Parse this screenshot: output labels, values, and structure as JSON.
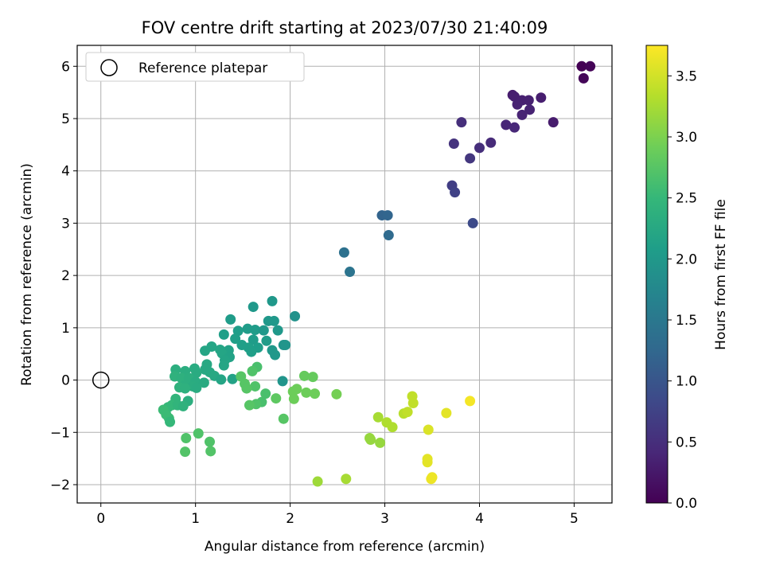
{
  "chart_data": {
    "type": "scatter",
    "title": "FOV centre drift starting at 2023/07/30 21:40:09",
    "xlabel": "Angular distance from reference (arcmin)",
    "ylabel": "Rotation from reference (arcmin)",
    "xlim": [
      -0.25,
      5.4
    ],
    "ylim": [
      -2.35,
      6.4
    ],
    "xticks": [
      0,
      1,
      2,
      3,
      4,
      5
    ],
    "yticks": [
      -2,
      -1,
      0,
      1,
      2,
      3,
      4,
      5,
      6
    ],
    "grid": true,
    "legend": {
      "position": "top-left",
      "entries": [
        "Reference platepar"
      ]
    },
    "reference_point": {
      "x": 0,
      "y": 0,
      "label": "Reference platepar"
    },
    "colorbar": {
      "label": "Hours from first FF file",
      "colormap": "viridis",
      "range": [
        0,
        3.75
      ],
      "ticks": [
        "0.0",
        "0.5",
        "1.0",
        "1.5",
        "2.0",
        "2.5",
        "3.0",
        "3.5"
      ]
    },
    "colors": {
      "viridis_stops": [
        "#440154",
        "#482878",
        "#3e4989",
        "#31688e",
        "#26828e",
        "#1f9e89",
        "#35b779",
        "#6ece58",
        "#b5de2b",
        "#fde725"
      ],
      "grid": "#b0b0b0"
    },
    "points": [
      {
        "x": 5.08,
        "y": 6.0,
        "t": 0.0
      },
      {
        "x": 5.17,
        "y": 6.0,
        "t": 0.03
      },
      {
        "x": 5.1,
        "y": 5.77,
        "t": 0.05
      },
      {
        "x": 4.35,
        "y": 5.45,
        "t": 0.3
      },
      {
        "x": 4.37,
        "y": 5.42,
        "t": 0.32
      },
      {
        "x": 4.45,
        "y": 5.35,
        "t": 0.33
      },
      {
        "x": 4.52,
        "y": 5.35,
        "t": 0.34
      },
      {
        "x": 4.4,
        "y": 5.27,
        "t": 0.35
      },
      {
        "x": 4.65,
        "y": 5.4,
        "t": 0.31
      },
      {
        "x": 4.53,
        "y": 5.17,
        "t": 0.36
      },
      {
        "x": 4.45,
        "y": 5.07,
        "t": 0.37
      },
      {
        "x": 4.28,
        "y": 4.88,
        "t": 0.4
      },
      {
        "x": 4.37,
        "y": 4.83,
        "t": 0.42
      },
      {
        "x": 4.78,
        "y": 4.93,
        "t": 0.29
      },
      {
        "x": 3.81,
        "y": 4.93,
        "t": 0.5
      },
      {
        "x": 3.73,
        "y": 4.52,
        "t": 0.55
      },
      {
        "x": 4.12,
        "y": 4.54,
        "t": 0.45
      },
      {
        "x": 4.0,
        "y": 4.44,
        "t": 0.5
      },
      {
        "x": 3.9,
        "y": 4.24,
        "t": 0.6
      },
      {
        "x": 3.71,
        "y": 3.72,
        "t": 0.7
      },
      {
        "x": 3.74,
        "y": 3.59,
        "t": 0.75
      },
      {
        "x": 3.93,
        "y": 3.0,
        "t": 0.85
      },
      {
        "x": 2.97,
        "y": 3.15,
        "t": 1.2
      },
      {
        "x": 3.03,
        "y": 3.15,
        "t": 1.22
      },
      {
        "x": 3.04,
        "y": 2.77,
        "t": 1.3
      },
      {
        "x": 2.57,
        "y": 2.44,
        "t": 1.4
      },
      {
        "x": 2.63,
        "y": 2.07,
        "t": 1.45
      },
      {
        "x": 1.81,
        "y": 1.51,
        "t": 2.0
      },
      {
        "x": 1.61,
        "y": 1.4,
        "t": 2.0
      },
      {
        "x": 1.37,
        "y": 1.16,
        "t": 2.05
      },
      {
        "x": 2.05,
        "y": 1.22,
        "t": 1.9
      },
      {
        "x": 1.77,
        "y": 1.13,
        "t": 2.0
      },
      {
        "x": 1.83,
        "y": 1.13,
        "t": 2.0
      },
      {
        "x": 1.55,
        "y": 0.98,
        "t": 2.05
      },
      {
        "x": 1.63,
        "y": 0.96,
        "t": 2.05
      },
      {
        "x": 1.45,
        "y": 0.94,
        "t": 2.08
      },
      {
        "x": 1.72,
        "y": 0.95,
        "t": 2.0
      },
      {
        "x": 1.87,
        "y": 0.95,
        "t": 2.0
      },
      {
        "x": 1.3,
        "y": 0.87,
        "t": 2.1
      },
      {
        "x": 1.42,
        "y": 0.79,
        "t": 2.1
      },
      {
        "x": 1.61,
        "y": 0.77,
        "t": 2.05
      },
      {
        "x": 1.75,
        "y": 0.75,
        "t": 2.05
      },
      {
        "x": 1.49,
        "y": 0.67,
        "t": 2.1
      },
      {
        "x": 1.56,
        "y": 0.62,
        "t": 2.1
      },
      {
        "x": 1.66,
        "y": 0.62,
        "t": 2.08
      },
      {
        "x": 1.17,
        "y": 0.64,
        "t": 2.2
      },
      {
        "x": 1.26,
        "y": 0.58,
        "t": 2.2
      },
      {
        "x": 1.35,
        "y": 0.57,
        "t": 2.15
      },
      {
        "x": 1.93,
        "y": 0.67,
        "t": 1.95
      },
      {
        "x": 1.95,
        "y": 0.67,
        "t": 1.95
      },
      {
        "x": 1.81,
        "y": 0.57,
        "t": 2.0
      },
      {
        "x": 1.59,
        "y": 0.54,
        "t": 2.1
      },
      {
        "x": 1.1,
        "y": 0.56,
        "t": 2.2
      },
      {
        "x": 1.28,
        "y": 0.51,
        "t": 2.2
      },
      {
        "x": 1.84,
        "y": 0.48,
        "t": 2.0
      },
      {
        "x": 1.36,
        "y": 0.44,
        "t": 2.15
      },
      {
        "x": 1.31,
        "y": 0.38,
        "t": 2.18
      },
      {
        "x": 1.3,
        "y": 0.28,
        "t": 2.2
      },
      {
        "x": 1.12,
        "y": 0.3,
        "t": 2.25
      },
      {
        "x": 1.1,
        "y": 0.2,
        "t": 2.25
      },
      {
        "x": 1.15,
        "y": 0.15,
        "t": 2.25
      },
      {
        "x": 0.99,
        "y": 0.22,
        "t": 2.3
      },
      {
        "x": 0.79,
        "y": 0.2,
        "t": 2.35
      },
      {
        "x": 0.89,
        "y": 0.17,
        "t": 2.33
      },
      {
        "x": 1.01,
        "y": 0.14,
        "t": 2.3
      },
      {
        "x": 1.2,
        "y": 0.08,
        "t": 2.25
      },
      {
        "x": 0.78,
        "y": 0.07,
        "t": 2.4
      },
      {
        "x": 0.85,
        "y": 0.04,
        "t": 2.38
      },
      {
        "x": 0.93,
        "y": 0.04,
        "t": 2.35
      },
      {
        "x": 1.27,
        "y": 0.01,
        "t": 2.2
      },
      {
        "x": 1.39,
        "y": 0.02,
        "t": 2.15
      },
      {
        "x": 1.0,
        "y": -0.03,
        "t": 2.3
      },
      {
        "x": 1.09,
        "y": -0.05,
        "t": 2.28
      },
      {
        "x": 0.89,
        "y": -0.1,
        "t": 2.35
      },
      {
        "x": 0.97,
        "y": -0.12,
        "t": 2.32
      },
      {
        "x": 0.83,
        "y": -0.14,
        "t": 2.4
      },
      {
        "x": 0.89,
        "y": -0.16,
        "t": 2.38
      },
      {
        "x": 1.01,
        "y": -0.15,
        "t": 2.3
      },
      {
        "x": 0.79,
        "y": -0.36,
        "t": 2.45
      },
      {
        "x": 0.92,
        "y": -0.4,
        "t": 2.35
      },
      {
        "x": 0.75,
        "y": -0.48,
        "t": 2.5
      },
      {
        "x": 0.81,
        "y": -0.48,
        "t": 2.45
      },
      {
        "x": 0.87,
        "y": -0.5,
        "t": 2.4
      },
      {
        "x": 0.71,
        "y": -0.52,
        "t": 2.5
      },
      {
        "x": 0.66,
        "y": -0.57,
        "t": 2.55
      },
      {
        "x": 0.69,
        "y": -0.66,
        "t": 2.55
      },
      {
        "x": 0.72,
        "y": -0.73,
        "t": 2.55
      },
      {
        "x": 0.73,
        "y": -0.8,
        "t": 2.5
      },
      {
        "x": 0.9,
        "y": -1.11,
        "t": 2.7
      },
      {
        "x": 1.03,
        "y": -1.02,
        "t": 2.7
      },
      {
        "x": 1.15,
        "y": -1.18,
        "t": 2.7
      },
      {
        "x": 1.16,
        "y": -1.36,
        "t": 2.72
      },
      {
        "x": 0.89,
        "y": -1.37,
        "t": 2.72
      },
      {
        "x": 1.65,
        "y": 0.25,
        "t": 2.65
      },
      {
        "x": 1.6,
        "y": 0.17,
        "t": 2.7
      },
      {
        "x": 1.48,
        "y": 0.07,
        "t": 2.75
      },
      {
        "x": 1.92,
        "y": -0.02,
        "t": 1.95
      },
      {
        "x": 1.52,
        "y": -0.07,
        "t": 2.75
      },
      {
        "x": 1.63,
        "y": -0.12,
        "t": 2.7
      },
      {
        "x": 1.54,
        "y": -0.16,
        "t": 2.75
      },
      {
        "x": 1.74,
        "y": -0.26,
        "t": 2.65
      },
      {
        "x": 1.85,
        "y": -0.35,
        "t": 2.8
      },
      {
        "x": 1.7,
        "y": -0.42,
        "t": 2.65
      },
      {
        "x": 1.64,
        "y": -0.46,
        "t": 2.7
      },
      {
        "x": 1.57,
        "y": -0.48,
        "t": 2.75
      },
      {
        "x": 1.93,
        "y": -0.74,
        "t": 2.75
      },
      {
        "x": 2.15,
        "y": 0.08,
        "t": 2.85
      },
      {
        "x": 2.24,
        "y": 0.06,
        "t": 2.85
      },
      {
        "x": 2.07,
        "y": -0.17,
        "t": 2.9
      },
      {
        "x": 2.03,
        "y": -0.22,
        "t": 2.9
      },
      {
        "x": 2.17,
        "y": -0.24,
        "t": 2.9
      },
      {
        "x": 2.26,
        "y": -0.26,
        "t": 2.9
      },
      {
        "x": 2.04,
        "y": -0.36,
        "t": 2.9
      },
      {
        "x": 2.49,
        "y": -0.27,
        "t": 2.95
      },
      {
        "x": 2.29,
        "y": -1.94,
        "t": 3.2
      },
      {
        "x": 2.59,
        "y": -1.89,
        "t": 3.25
      },
      {
        "x": 2.84,
        "y": -1.11,
        "t": 3.15
      },
      {
        "x": 2.85,
        "y": -1.14,
        "t": 3.15
      },
      {
        "x": 2.95,
        "y": -1.2,
        "t": 3.15
      },
      {
        "x": 2.93,
        "y": -0.71,
        "t": 3.25
      },
      {
        "x": 3.02,
        "y": -0.81,
        "t": 3.3
      },
      {
        "x": 3.08,
        "y": -0.9,
        "t": 3.3
      },
      {
        "x": 3.2,
        "y": -0.64,
        "t": 3.35
      },
      {
        "x": 3.24,
        "y": -0.61,
        "t": 3.4
      },
      {
        "x": 3.29,
        "y": -0.31,
        "t": 3.4
      },
      {
        "x": 3.3,
        "y": -0.44,
        "t": 3.4
      },
      {
        "x": 3.46,
        "y": -0.95,
        "t": 3.55
      },
      {
        "x": 3.45,
        "y": -1.51,
        "t": 3.6
      },
      {
        "x": 3.45,
        "y": -1.57,
        "t": 3.6
      },
      {
        "x": 3.5,
        "y": -1.86,
        "t": 3.65
      },
      {
        "x": 3.49,
        "y": -1.89,
        "t": 3.66
      },
      {
        "x": 3.65,
        "y": -0.63,
        "t": 3.6
      },
      {
        "x": 3.9,
        "y": -0.4,
        "t": 3.7
      }
    ]
  }
}
